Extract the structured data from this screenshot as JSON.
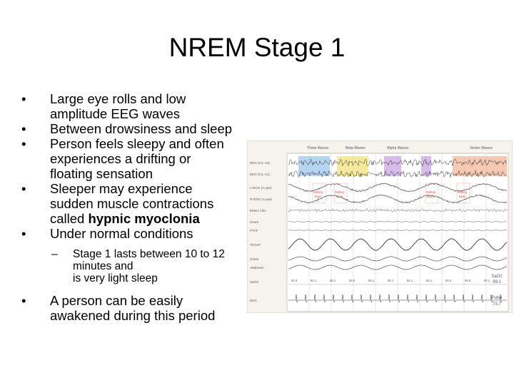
{
  "slide": {
    "title": "NREM Stage 1",
    "bullet_char": "•",
    "sub_bullet_char": "–",
    "bullets": [
      {
        "lines": [
          "Large eye rolls and low",
          "amplitude EEG waves"
        ]
      },
      {
        "lines": [
          "Between drowsiness and sleep"
        ]
      },
      {
        "lines": [
          "Person feels sleepy and often",
          "experiences a drifting or",
          "floating sensation"
        ]
      },
      {
        "line1": "Sleeper may experience",
        "line2": "sudden muscle contractions",
        "line3_prefix": "called ",
        "line3_bold": "hypnic myoclonia"
      },
      {
        "lines": [
          "Under normal conditions"
        ]
      }
    ],
    "sub_bullet": {
      "lines": [
        "Stage 1 lasts between 10 to 12",
        "minutes and",
        "is very light sleep"
      ]
    },
    "last_bullet": {
      "lines": [
        "A person can be easily",
        "awakened during this period"
      ]
    }
  },
  "polysomnogram": {
    "wave_labels": [
      "Theta Waves",
      "Beta Waves",
      "Alpha Waves",
      "Vertex Waves"
    ],
    "channels": [
      "EEG (C3, A2)",
      "EEG (C4, A1)",
      "L-EOG (A,eye)",
      "R-EOG (A,eye)",
      "EMG1 chin",
      "Snore",
      "PTAF",
      "ThOAP",
      "Chest",
      "Abdomen",
      "SaO2",
      "EKG"
    ],
    "event_labels": [
      "Rolling Eyes",
      "Rolling Eyes",
      "Rolling Eyes",
      "Rolling Eyes"
    ],
    "sao2_values": [
      "92.3",
      "92.1",
      "92.1",
      "92.8",
      "92.1",
      "92.1",
      "92.1",
      "92.1",
      "92.3",
      "92.8",
      "92.1"
    ],
    "sao2_readout": {
      "label": "SaO2",
      "value": "99.1"
    },
    "pulse_readout": {
      "label": "Pulse",
      "value": "73.7"
    },
    "colors": {
      "theta": "#9ec7ee",
      "beta": "#f2e27a",
      "alpha": "#c9a6e4",
      "vertex": "#f3b79a",
      "eog": "#d64a3a",
      "trace": "#333333"
    }
  }
}
